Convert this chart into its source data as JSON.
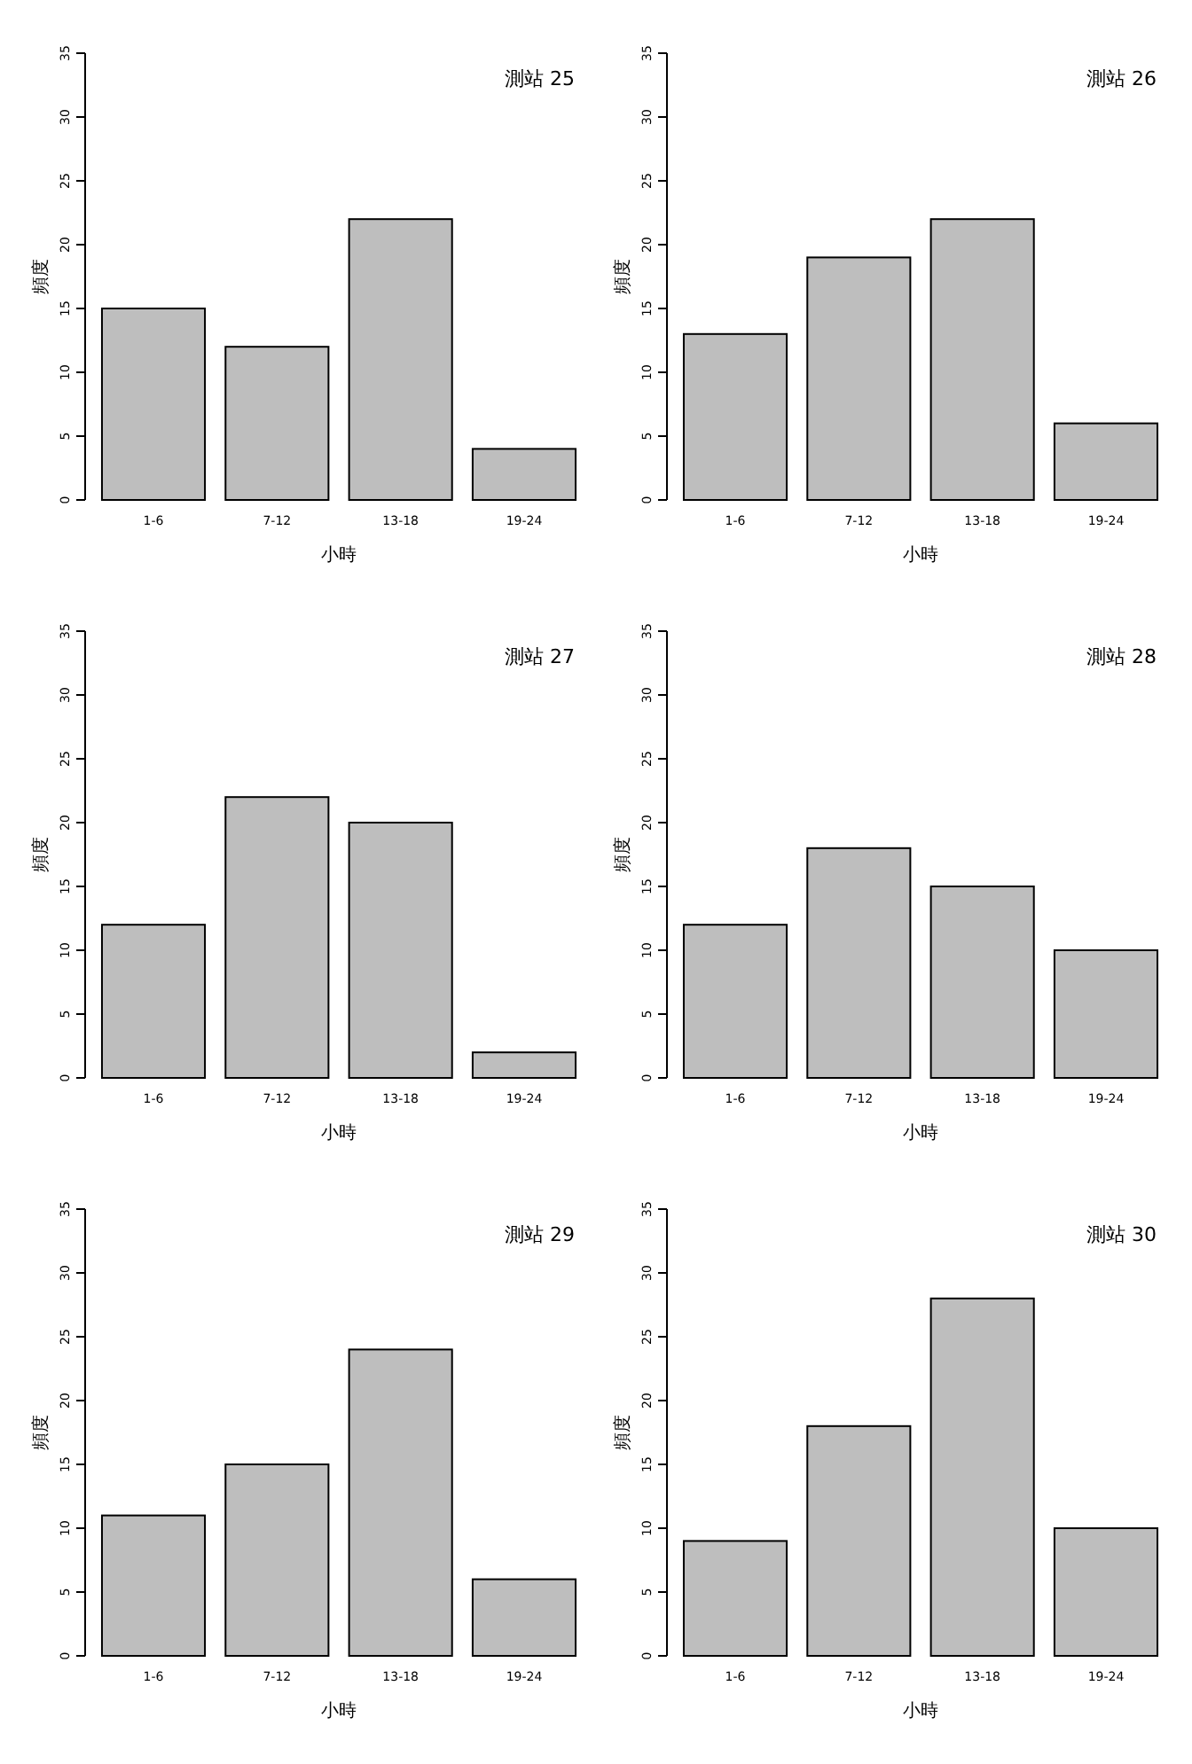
{
  "chart_data": [
    {
      "type": "bar",
      "title": "測站 25",
      "xlabel": "小時",
      "ylabel": "頻度",
      "categories": [
        "1-6",
        "7-12",
        "13-18",
        "19-24"
      ],
      "values": [
        15,
        12,
        22,
        4
      ],
      "color": "#bebebe",
      "ylim": [
        0,
        35
      ],
      "yticks": [
        0,
        5,
        10,
        15,
        20,
        25,
        30,
        35
      ],
      "grid": false
    },
    {
      "type": "bar",
      "title": "測站 26",
      "xlabel": "小時",
      "ylabel": "頻度",
      "categories": [
        "1-6",
        "7-12",
        "13-18",
        "19-24"
      ],
      "values": [
        13,
        19,
        22,
        6
      ],
      "color": "#bebebe",
      "ylim": [
        0,
        35
      ],
      "yticks": [
        0,
        5,
        10,
        15,
        20,
        25,
        30,
        35
      ],
      "grid": false
    },
    {
      "type": "bar",
      "title": "測站 27",
      "xlabel": "小時",
      "ylabel": "頻度",
      "categories": [
        "1-6",
        "7-12",
        "13-18",
        "19-24"
      ],
      "values": [
        12,
        22,
        20,
        2
      ],
      "color": "#bebebe",
      "ylim": [
        0,
        35
      ],
      "yticks": [
        0,
        5,
        10,
        15,
        20,
        25,
        30,
        35
      ],
      "grid": false
    },
    {
      "type": "bar",
      "title": "測站 28",
      "xlabel": "小時",
      "ylabel": "頻度",
      "categories": [
        "1-6",
        "7-12",
        "13-18",
        "19-24"
      ],
      "values": [
        12,
        18,
        15,
        10
      ],
      "color": "#bebebe",
      "ylim": [
        0,
        35
      ],
      "yticks": [
        0,
        5,
        10,
        15,
        20,
        25,
        30,
        35
      ],
      "grid": false
    },
    {
      "type": "bar",
      "title": "測站 29",
      "xlabel": "小時",
      "ylabel": "頻度",
      "categories": [
        "1-6",
        "7-12",
        "13-18",
        "19-24"
      ],
      "values": [
        11,
        15,
        24,
        6
      ],
      "color": "#bebebe",
      "ylim": [
        0,
        35
      ],
      "yticks": [
        0,
        5,
        10,
        15,
        20,
        25,
        30,
        35
      ],
      "grid": false
    },
    {
      "type": "bar",
      "title": "測站 30",
      "xlabel": "小時",
      "ylabel": "頻度",
      "categories": [
        "1-6",
        "7-12",
        "13-18",
        "19-24"
      ],
      "values": [
        9,
        18,
        28,
        10
      ],
      "color": "#bebebe",
      "ylim": [
        0,
        35
      ],
      "yticks": [
        0,
        5,
        10,
        15,
        20,
        25,
        30,
        35
      ],
      "grid": false
    }
  ]
}
